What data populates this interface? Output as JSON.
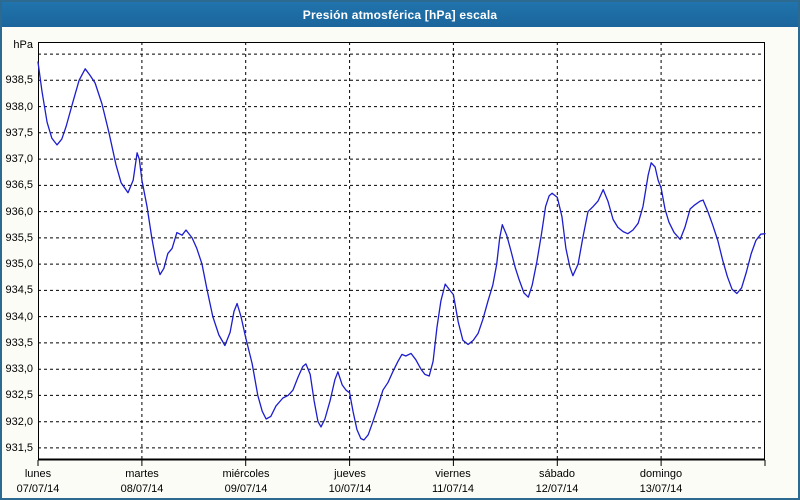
{
  "window": {
    "title": "Presión atmosférica [hPa] escala"
  },
  "colors": {
    "titlebar": "#1e6ca4",
    "frame": "#2d6a92",
    "background": "#fcfcf7",
    "plot_bg": "#ffffff",
    "grid": "#000000",
    "line": "#1d1dcd",
    "title_text": "#ffffff",
    "label_text": "#000000"
  },
  "chart_data": {
    "type": "line",
    "title": "Presión atmosférica [hPa] escala",
    "xlabel": "",
    "ylabel": "hPa",
    "legend": "none",
    "grid": "dashed",
    "ylim": [
      931.27,
      939.23
    ],
    "xlim_hours": [
      0,
      168
    ],
    "y_axis": {
      "unit": "hPa",
      "tick_values": [
        938.5,
        938.0,
        937.5,
        937.0,
        936.5,
        936.0,
        935.5,
        935.0,
        934.5,
        934.0,
        933.5,
        933.0,
        932.5,
        932.0,
        931.5
      ],
      "tick_labels": [
        "938,5",
        "938,0",
        "937,5",
        "937,0",
        "936,5",
        "936,0",
        "935,5",
        "935,0",
        "934,5",
        "934,0",
        "933,5",
        "933,0",
        "932,5",
        "932,0",
        "931,5"
      ],
      "gridline_values": [
        939.0,
        938.5,
        938.0,
        937.5,
        937.0,
        936.5,
        936.0,
        935.5,
        935.0,
        934.5,
        934.0,
        933.5,
        933.0,
        932.5,
        932.0,
        931.5
      ]
    },
    "x_axis": {
      "inner_gridline_hours": [
        24,
        48,
        72,
        96,
        120,
        144
      ],
      "tick_hours": [
        0,
        24,
        48,
        72,
        96,
        120,
        144,
        168
      ],
      "days": [
        {
          "name": "lunes",
          "date": "07/07/14",
          "t": 0
        },
        {
          "name": "martes",
          "date": "08/07/14",
          "t": 24
        },
        {
          "name": "miércoles",
          "date": "09/07/14",
          "t": 48
        },
        {
          "name": "jueves",
          "date": "10/07/14",
          "t": 72
        },
        {
          "name": "viernes",
          "date": "11/07/14",
          "t": 96
        },
        {
          "name": "sábado",
          "date": "12/07/14",
          "t": 120
        },
        {
          "name": "domingo",
          "date": "13/07/14",
          "t": 144
        }
      ]
    },
    "points": [
      [
        0,
        938.85
      ],
      [
        0.9,
        938.3
      ],
      [
        2.1,
        937.7
      ],
      [
        3.2,
        937.4
      ],
      [
        4.4,
        937.27
      ],
      [
        5.5,
        937.38
      ],
      [
        6.5,
        937.62
      ],
      [
        8.1,
        938.1
      ],
      [
        9.5,
        938.5
      ],
      [
        10.9,
        938.72
      ],
      [
        12,
        938.6
      ],
      [
        13.2,
        938.45
      ],
      [
        14.8,
        938.05
      ],
      [
        16.4,
        937.5
      ],
      [
        18,
        936.9
      ],
      [
        19.2,
        936.55
      ],
      [
        20.8,
        936.36
      ],
      [
        22,
        936.6
      ],
      [
        22.9,
        937.12
      ],
      [
        23.4,
        937.0
      ],
      [
        24,
        936.6
      ],
      [
        25.2,
        936.1
      ],
      [
        26.3,
        935.5
      ],
      [
        27.3,
        935.05
      ],
      [
        28.2,
        934.8
      ],
      [
        29.1,
        934.92
      ],
      [
        30,
        935.2
      ],
      [
        31,
        935.3
      ],
      [
        32.1,
        935.6
      ],
      [
        33.3,
        935.55
      ],
      [
        34.2,
        935.65
      ],
      [
        35.6,
        935.5
      ],
      [
        36.7,
        935.3
      ],
      [
        37.9,
        935.0
      ],
      [
        39.1,
        934.5
      ],
      [
        40.4,
        934.0
      ],
      [
        41.8,
        933.65
      ],
      [
        43.2,
        933.45
      ],
      [
        44.4,
        933.7
      ],
      [
        45.3,
        934.1
      ],
      [
        46,
        934.25
      ],
      [
        46.9,
        934.0
      ],
      [
        48,
        933.6
      ],
      [
        49.5,
        933.1
      ],
      [
        50.8,
        932.5
      ],
      [
        51.8,
        932.2
      ],
      [
        52.7,
        932.05
      ],
      [
        53.8,
        932.1
      ],
      [
        55,
        932.3
      ],
      [
        56.6,
        932.45
      ],
      [
        57.8,
        932.5
      ],
      [
        58.9,
        932.6
      ],
      [
        60.1,
        932.85
      ],
      [
        61.2,
        933.05
      ],
      [
        61.9,
        933.1
      ],
      [
        62.9,
        932.9
      ],
      [
        63.8,
        932.4
      ],
      [
        64.7,
        932.0
      ],
      [
        65.4,
        931.9
      ],
      [
        66.3,
        932.05
      ],
      [
        67.5,
        932.4
      ],
      [
        68.6,
        932.8
      ],
      [
        69.3,
        932.95
      ],
      [
        70.3,
        932.7
      ],
      [
        71.2,
        932.6
      ],
      [
        72,
        932.55
      ],
      [
        72.8,
        932.2
      ],
      [
        73.7,
        931.85
      ],
      [
        74.6,
        931.68
      ],
      [
        75.3,
        931.65
      ],
      [
        76.3,
        931.75
      ],
      [
        77.4,
        932.0
      ],
      [
        78.6,
        932.3
      ],
      [
        79.7,
        932.6
      ],
      [
        80.9,
        932.75
      ],
      [
        82,
        932.95
      ],
      [
        83.2,
        933.15
      ],
      [
        84.1,
        933.28
      ],
      [
        85,
        933.25
      ],
      [
        86.2,
        933.3
      ],
      [
        87.3,
        933.18
      ],
      [
        88.5,
        933.0
      ],
      [
        89.4,
        932.9
      ],
      [
        90.4,
        932.87
      ],
      [
        91.3,
        933.15
      ],
      [
        92.2,
        933.8
      ],
      [
        93.1,
        934.3
      ],
      [
        94.1,
        934.62
      ],
      [
        95.2,
        934.5
      ],
      [
        96,
        934.42
      ],
      [
        97.1,
        933.9
      ],
      [
        98.2,
        933.55
      ],
      [
        99.4,
        933.47
      ],
      [
        100.6,
        933.55
      ],
      [
        101.7,
        933.68
      ],
      [
        102.8,
        933.95
      ],
      [
        104,
        934.3
      ],
      [
        105.1,
        934.6
      ],
      [
        106,
        935.0
      ],
      [
        106.7,
        935.5
      ],
      [
        107.3,
        935.75
      ],
      [
        108.3,
        935.55
      ],
      [
        109.3,
        935.25
      ],
      [
        110.3,
        934.93
      ],
      [
        111.2,
        934.7
      ],
      [
        112.3,
        934.45
      ],
      [
        113.3,
        934.37
      ],
      [
        114.2,
        934.6
      ],
      [
        115.3,
        935.05
      ],
      [
        116.3,
        935.55
      ],
      [
        117.3,
        936.1
      ],
      [
        118.1,
        936.3
      ],
      [
        118.8,
        936.35
      ],
      [
        120,
        936.27
      ],
      [
        121.1,
        935.9
      ],
      [
        122,
        935.3
      ],
      [
        122.9,
        934.95
      ],
      [
        123.6,
        934.78
      ],
      [
        124.8,
        935.0
      ],
      [
        125.9,
        935.5
      ],
      [
        127.1,
        936.0
      ],
      [
        128.3,
        936.1
      ],
      [
        129.4,
        936.2
      ],
      [
        130.6,
        936.42
      ],
      [
        131.7,
        936.2
      ],
      [
        132.9,
        935.85
      ],
      [
        134,
        935.7
      ],
      [
        135.2,
        935.62
      ],
      [
        136.3,
        935.58
      ],
      [
        137.5,
        935.65
      ],
      [
        138.7,
        935.78
      ],
      [
        139.8,
        936.1
      ],
      [
        141,
        936.7
      ],
      [
        141.7,
        936.93
      ],
      [
        142.6,
        936.85
      ],
      [
        143.3,
        936.6
      ],
      [
        144,
        936.45
      ],
      [
        144.9,
        936.05
      ],
      [
        145.8,
        935.8
      ],
      [
        147,
        935.6
      ],
      [
        148.4,
        935.47
      ],
      [
        149.5,
        935.7
      ],
      [
        150.7,
        936.05
      ],
      [
        151.8,
        936.13
      ],
      [
        153,
        936.2
      ],
      [
        153.7,
        936.22
      ],
      [
        154.8,
        936.0
      ],
      [
        155.9,
        935.75
      ],
      [
        157.1,
        935.45
      ],
      [
        158.2,
        935.08
      ],
      [
        159.3,
        934.76
      ],
      [
        160.4,
        934.52
      ],
      [
        161.5,
        934.44
      ],
      [
        162.6,
        934.55
      ],
      [
        163.7,
        934.85
      ],
      [
        164.8,
        935.2
      ],
      [
        165.9,
        935.45
      ],
      [
        167,
        935.57
      ],
      [
        168,
        935.58
      ]
    ]
  }
}
